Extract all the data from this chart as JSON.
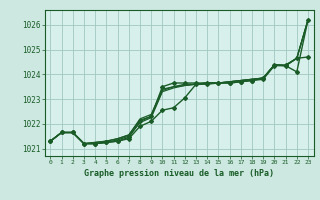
{
  "title": "Graphe pression niveau de la mer (hPa)",
  "background_color": "#cce8e0",
  "plot_bg": "#d8f0ec",
  "grid_color": "#a0c8c0",
  "line_color": "#1a5c28",
  "xlim": [
    -0.5,
    23.5
  ],
  "ylim": [
    1020.7,
    1026.6
  ],
  "yticks": [
    1021,
    1022,
    1023,
    1024,
    1025,
    1026
  ],
  "xtick_labels": [
    "0",
    "1",
    "2",
    "3",
    "4",
    "5",
    "6",
    "7",
    "8",
    "9",
    "10",
    "11",
    "12",
    "13",
    "14",
    "15",
    "16",
    "17",
    "18",
    "19",
    "20",
    "21",
    "22",
    "23"
  ],
  "series": [
    {
      "x": [
        0,
        1,
        2,
        3,
        4,
        5,
        6,
        7,
        8,
        9,
        10,
        11,
        12,
        13,
        14,
        15,
        16,
        17,
        18,
        19,
        20,
        21,
        22,
        23
      ],
      "y": [
        1021.3,
        1021.65,
        1021.65,
        1021.2,
        1021.2,
        1021.25,
        1021.3,
        1021.4,
        1021.9,
        1022.1,
        1022.55,
        1022.65,
        1023.05,
        1023.6,
        1023.6,
        1023.65,
        1023.65,
        1023.7,
        1023.75,
        1023.8,
        1024.35,
        1024.35,
        1024.1,
        1026.2
      ],
      "marker": true,
      "lw": 1.0
    },
    {
      "x": [
        0,
        1,
        2,
        3,
        4,
        5,
        6,
        7,
        8,
        9,
        10,
        11,
        12,
        13,
        14,
        15,
        16,
        17,
        18,
        19,
        20,
        21,
        22,
        23
      ],
      "y": [
        1021.3,
        1021.65,
        1021.65,
        1021.2,
        1021.2,
        1021.25,
        1021.35,
        1021.5,
        1022.05,
        1022.25,
        1023.3,
        1023.45,
        1023.55,
        1023.6,
        1023.65,
        1023.65,
        1023.7,
        1023.75,
        1023.8,
        1023.85,
        1024.38,
        1024.35,
        1024.65,
        1026.2
      ],
      "marker": false,
      "lw": 0.9
    },
    {
      "x": [
        0,
        1,
        2,
        3,
        4,
        5,
        6,
        7,
        8,
        9,
        10,
        11,
        12,
        13,
        14,
        15,
        16,
        17,
        18,
        19,
        20,
        21,
        22,
        23
      ],
      "y": [
        1021.3,
        1021.65,
        1021.65,
        1021.2,
        1021.25,
        1021.3,
        1021.4,
        1021.55,
        1022.2,
        1022.38,
        1023.4,
        1023.5,
        1023.6,
        1023.6,
        1023.65,
        1023.65,
        1023.7,
        1023.75,
        1023.8,
        1023.85,
        1024.38,
        1024.35,
        1024.65,
        1026.2
      ],
      "marker": false,
      "lw": 0.9
    },
    {
      "x": [
        0,
        1,
        2,
        3,
        4,
        5,
        6,
        7,
        8,
        9,
        10,
        11,
        12,
        13,
        14,
        15,
        16,
        17,
        18,
        19,
        20,
        21,
        22,
        23
      ],
      "y": [
        1021.3,
        1021.65,
        1021.65,
        1021.2,
        1021.25,
        1021.3,
        1021.4,
        1021.55,
        1022.15,
        1022.3,
        1023.35,
        1023.5,
        1023.55,
        1023.6,
        1023.65,
        1023.65,
        1023.7,
        1023.75,
        1023.8,
        1023.85,
        1024.38,
        1024.35,
        1024.65,
        1026.2
      ],
      "marker": false,
      "lw": 0.9
    },
    {
      "x": [
        0,
        1,
        2,
        3,
        4,
        5,
        6,
        7,
        8,
        9,
        10,
        11,
        12,
        13,
        14,
        15,
        16,
        17,
        18,
        19,
        20,
        21,
        22,
        23
      ],
      "y": [
        1021.3,
        1021.65,
        1021.65,
        1021.2,
        1021.2,
        1021.25,
        1021.3,
        1021.45,
        1022.1,
        1022.3,
        1023.5,
        1023.65,
        1023.65,
        1023.65,
        1023.65,
        1023.65,
        1023.65,
        1023.7,
        1023.75,
        1023.85,
        1024.38,
        1024.38,
        1024.65,
        1024.7
      ],
      "marker": true,
      "lw": 1.0
    }
  ]
}
